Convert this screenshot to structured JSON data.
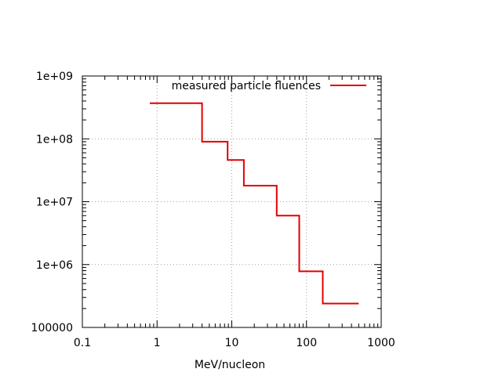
{
  "chart_data": {
    "type": "line",
    "subtype": "step",
    "title": "",
    "xlabel": "MeV/nucleon",
    "ylabel": "",
    "x_scale": "log",
    "y_scale": "log",
    "xlim": [
      0.1,
      1000
    ],
    "ylim": [
      100000,
      1000000000
    ],
    "grid": true,
    "legend_position": "top-right",
    "x_ticks": [
      {
        "value": 0.1,
        "label": "0.1"
      },
      {
        "value": 1,
        "label": "1"
      },
      {
        "value": 10,
        "label": "10"
      },
      {
        "value": 100,
        "label": "100"
      },
      {
        "value": 1000,
        "label": "1000"
      }
    ],
    "y_ticks": [
      {
        "value": 100000,
        "label": "100000"
      },
      {
        "value": 1000000,
        "label": "1e+06"
      },
      {
        "value": 10000000,
        "label": "1e+07"
      },
      {
        "value": 100000000,
        "label": "1e+08"
      },
      {
        "value": 1000000000,
        "label": "1e+09"
      }
    ],
    "series": [
      {
        "name": "measured particle fluences",
        "color": "#e00000",
        "bins": [
          {
            "x_start": 0.8,
            "x_end": 4,
            "y": 370000000
          },
          {
            "x_start": 4,
            "x_end": 8.8,
            "y": 90000000
          },
          {
            "x_start": 8.8,
            "x_end": 14.5,
            "y": 46000000
          },
          {
            "x_start": 14.5,
            "x_end": 40,
            "y": 18000000
          },
          {
            "x_start": 40,
            "x_end": 80,
            "y": 6000000
          },
          {
            "x_start": 80,
            "x_end": 165,
            "y": 780000
          },
          {
            "x_start": 165,
            "x_end": 500,
            "y": 240000
          }
        ]
      }
    ]
  }
}
